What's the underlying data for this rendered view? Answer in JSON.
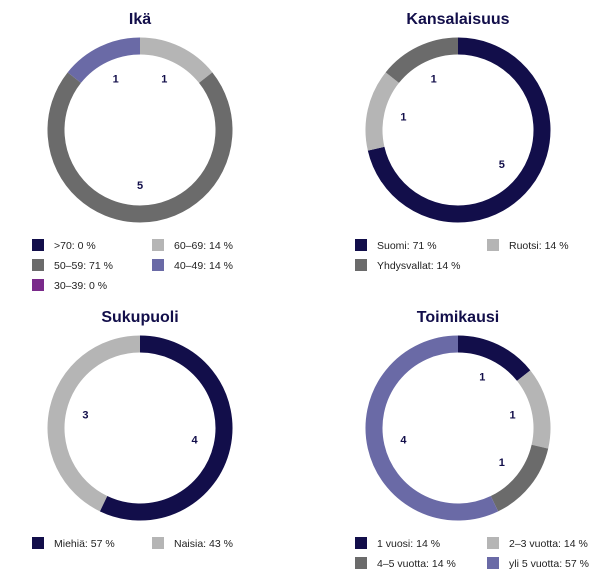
{
  "chart_data": [
    {
      "type": "pie",
      "title": "Ikä",
      "categories": [
        ">70: 0 %",
        "60–69: 14 %",
        "50–59: 71 %",
        "40–49: 14 %",
        "30–39: 0 %"
      ],
      "values": [
        0,
        1,
        5,
        1,
        0
      ],
      "colors": [
        "#120e4a",
        "#b5b5b5",
        "#6b6b6b",
        "#6a6aa6",
        "#7a2a8a"
      ]
    },
    {
      "type": "pie",
      "title": "Kansalaisuus",
      "categories": [
        "Suomi: 71 %",
        "Ruotsi: 14 %",
        "Yhdysvallat: 14 %"
      ],
      "values": [
        5,
        1,
        1
      ],
      "colors": [
        "#120e4a",
        "#b5b5b5",
        "#6b6b6b"
      ]
    },
    {
      "type": "pie",
      "title": "Sukupuoli",
      "categories": [
        "Miehiä: 57 %",
        "Naisia: 43 %"
      ],
      "values": [
        4,
        3
      ],
      "colors": [
        "#120e4a",
        "#b5b5b5"
      ]
    },
    {
      "type": "pie",
      "title": "Toimikausi",
      "categories": [
        "1 vuosi: 14 %",
        "2–3 vuotta: 14 %",
        "4–5 vuotta: 14 %",
        "yli 5 vuotta: 57 %"
      ],
      "values": [
        1,
        1,
        1,
        4
      ],
      "colors": [
        "#120e4a",
        "#b5b5b5",
        "#6b6b6b",
        "#6a6aa6"
      ]
    }
  ]
}
